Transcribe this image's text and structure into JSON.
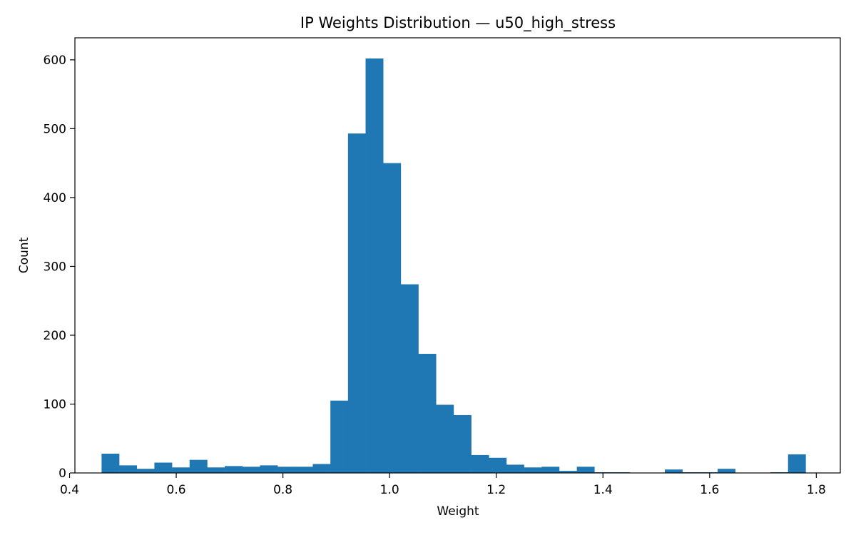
{
  "chart_data": {
    "type": "bar",
    "title": "IP Weights Distribution — u50_high_stress",
    "xlabel": "Weight",
    "ylabel": "Count",
    "xlim": [
      0.41,
      1.845
    ],
    "ylim": [
      0,
      632
    ],
    "xticks": [
      0.4,
      0.6,
      0.8,
      1.0,
      1.2,
      1.4,
      1.6,
      1.8
    ],
    "xtick_labels": [
      "0.4",
      "0.6",
      "0.8",
      "1.0",
      "1.2",
      "1.4",
      "1.6",
      "1.8"
    ],
    "yticks": [
      0,
      100,
      200,
      300,
      400,
      500,
      600
    ],
    "ytick_labels": [
      "0",
      "100",
      "200",
      "300",
      "400",
      "500",
      "600"
    ],
    "bin_start": 0.46,
    "bin_width": 0.033,
    "values": [
      28,
      11,
      6,
      15,
      8,
      19,
      8,
      10,
      9,
      11,
      9,
      9,
      13,
      105,
      493,
      602,
      450,
      274,
      173,
      99,
      84,
      26,
      22,
      12,
      8,
      9,
      3,
      9,
      1,
      1,
      0,
      0,
      5,
      1,
      1,
      6,
      0,
      0,
      1,
      27
    ],
    "color": "#1f77b4",
    "grid": false
  }
}
